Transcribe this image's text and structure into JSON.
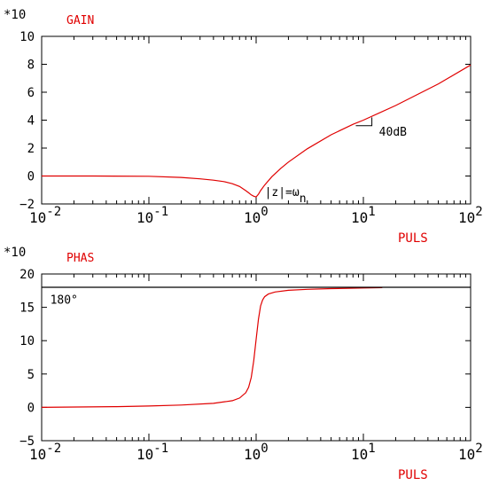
{
  "chart_data": [
    {
      "type": "line",
      "title": "GAIN",
      "ylabel": "*10",
      "xlabel": "PULS",
      "x_scale": "log",
      "xlim": [
        0.01,
        100
      ],
      "ylim": [
        -2,
        10
      ],
      "grid": false,
      "x_ticks": [
        {
          "base": "10",
          "exp": "-2"
        },
        {
          "base": "10",
          "exp": "-1"
        },
        {
          "base": "10",
          "exp": "0"
        },
        {
          "base": "10",
          "exp": "1"
        },
        {
          "base": "10",
          "exp": "2"
        }
      ],
      "y_ticks": [
        "10",
        "8",
        "6",
        "4",
        "2",
        "0",
        "−2"
      ],
      "y_tick_values": [
        10,
        8,
        6,
        4,
        2,
        0,
        -2
      ],
      "series": [
        {
          "color": "#e00000",
          "x": [
            0.01,
            0.03,
            0.1,
            0.2,
            0.3,
            0.4,
            0.5,
            0.6,
            0.7,
            0.8,
            0.85,
            0.9,
            0.95,
            1.0,
            1.05,
            1.1,
            1.2,
            1.4,
            1.7,
            2,
            3,
            5,
            8,
            10,
            20,
            50,
            100
          ],
          "y": [
            0,
            0,
            -0.02,
            -0.1,
            -0.2,
            -0.3,
            -0.4,
            -0.55,
            -0.75,
            -1.05,
            -1.2,
            -1.35,
            -1.45,
            -1.5,
            -1.3,
            -1.05,
            -0.65,
            -0.05,
            0.55,
            1.0,
            1.95,
            2.95,
            3.7,
            4.0,
            5.05,
            6.6,
            7.95
          ]
        }
      ],
      "annotations": [
        {
          "text": "40dB",
          "x": 14,
          "y": 3.2
        },
        {
          "text": "|z|=ω",
          "sub": "n",
          "x": 1.2,
          "y": -1.1
        }
      ]
    },
    {
      "type": "line",
      "title": "PHAS",
      "ylabel": "*10",
      "xlabel": "PULS",
      "x_scale": "log",
      "xlim": [
        0.01,
        100
      ],
      "ylim": [
        -5,
        20
      ],
      "grid": false,
      "x_ticks": [
        {
          "base": "10",
          "exp": "-2"
        },
        {
          "base": "10",
          "exp": "-1"
        },
        {
          "base": "10",
          "exp": "0"
        },
        {
          "base": "10",
          "exp": "1"
        },
        {
          "base": "10",
          "exp": "2"
        }
      ],
      "y_ticks": [
        "20",
        "15",
        "10",
        "5",
        "0",
        "−5"
      ],
      "y_tick_values": [
        20,
        15,
        10,
        5,
        0,
        -5
      ],
      "series": [
        {
          "color": "#e00000",
          "x": [
            0.01,
            0.05,
            0.1,
            0.2,
            0.4,
            0.6,
            0.7,
            0.8,
            0.85,
            0.9,
            0.95,
            1.0,
            1.05,
            1.1,
            1.15,
            1.2,
            1.3,
            1.5,
            2,
            3,
            5,
            10,
            15
          ],
          "y": [
            0,
            0.1,
            0.2,
            0.35,
            0.6,
            1.0,
            1.4,
            2.2,
            3.0,
            4.5,
            7.0,
            10.2,
            13.2,
            15.2,
            16.1,
            16.6,
            17.0,
            17.3,
            17.55,
            17.7,
            17.8,
            17.9,
            17.95
          ]
        },
        {
          "color": "#000000",
          "x": [
            0.01,
            100
          ],
          "y": [
            18,
            18
          ]
        }
      ],
      "annotations": [
        {
          "text": "180°",
          "x": 0.012,
          "y": 16.2
        }
      ]
    }
  ]
}
